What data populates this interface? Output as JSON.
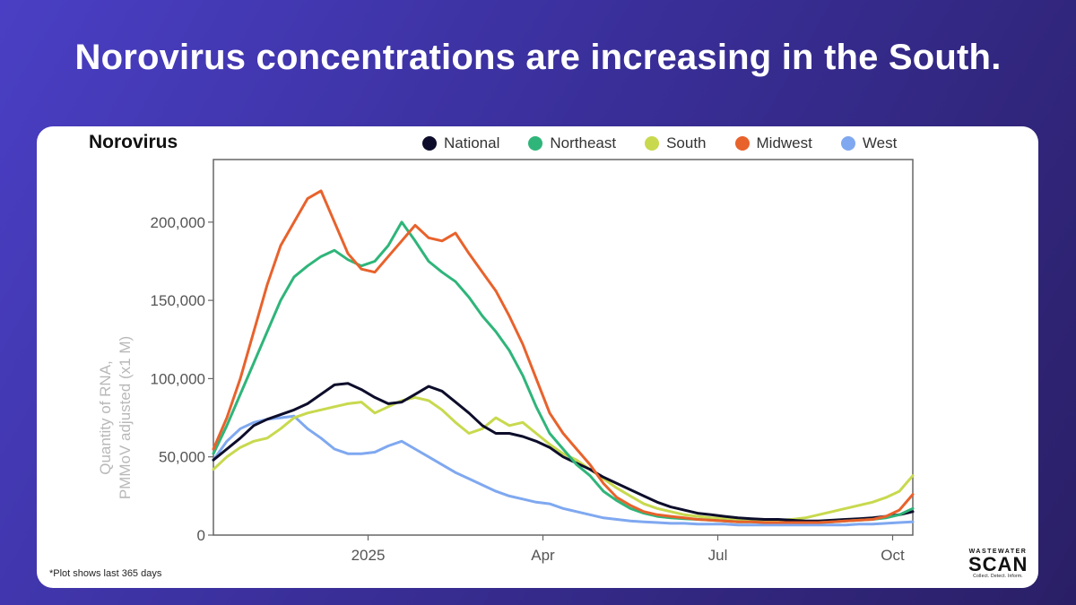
{
  "headline": "Norovirus concentrations are increasing in the South.",
  "footnote": "*Plot shows last 365 days",
  "logo": {
    "top": "WASTEWATER",
    "main": "SCAN",
    "tag": "Collect. Detect. Inform."
  },
  "chart_data": {
    "type": "line",
    "title": "Norovirus",
    "ylabel": "Quantity of RNA,\nPMMoV adjusted (x1 M)",
    "ylabel_lines": [
      "Quantity of RNA,",
      "PMMoV adjusted (x1 M)"
    ],
    "xlabel": "",
    "xlim": [
      0,
      52
    ],
    "ylim": [
      0,
      240000
    ],
    "x_unit": "week index (last 365 days)",
    "x_ticks": [
      {
        "x": 11.5,
        "label": "2025"
      },
      {
        "x": 24.5,
        "label": "Apr"
      },
      {
        "x": 37.5,
        "label": "Jul"
      },
      {
        "x": 50.5,
        "label": "Oct"
      }
    ],
    "y_ticks": [
      {
        "y": 0,
        "label": "0"
      },
      {
        "y": 50000,
        "label": "50,000"
      },
      {
        "y": 100000,
        "label": "100,000"
      },
      {
        "y": 150000,
        "label": "150,000"
      },
      {
        "y": 200000,
        "label": "200,000"
      }
    ],
    "legend_position": "top",
    "x": [
      0,
      1,
      2,
      3,
      4,
      5,
      6,
      7,
      8,
      9,
      10,
      11,
      12,
      13,
      14,
      15,
      16,
      17,
      18,
      19,
      20,
      21,
      22,
      23,
      24,
      25,
      26,
      27,
      28,
      29,
      30,
      31,
      32,
      33,
      34,
      35,
      36,
      37,
      38,
      39,
      40,
      41,
      42,
      43,
      44,
      45,
      46,
      47,
      48,
      49,
      50,
      51,
      52
    ],
    "series": [
      {
        "name": "National",
        "color": "#0d0d2b",
        "values": [
          48000,
          55000,
          62000,
          70000,
          74000,
          77000,
          80000,
          84000,
          90000,
          96000,
          97000,
          93000,
          88000,
          84000,
          85000,
          90000,
          95000,
          92000,
          85000,
          78000,
          70000,
          65000,
          65000,
          63000,
          60000,
          56000,
          50000,
          46000,
          42000,
          37000,
          33000,
          29000,
          25000,
          21000,
          18000,
          16000,
          14000,
          13000,
          12000,
          11000,
          10500,
          10000,
          10000,
          9500,
          9000,
          9000,
          9500,
          10000,
          10500,
          11000,
          12000,
          13000,
          15000
        ]
      },
      {
        "name": "Northeast",
        "color": "#2fb57a",
        "values": [
          52000,
          70000,
          90000,
          110000,
          130000,
          150000,
          165000,
          172000,
          178000,
          182000,
          176000,
          172000,
          175000,
          185000,
          200000,
          188000,
          175000,
          168000,
          162000,
          152000,
          140000,
          130000,
          118000,
          102000,
          82000,
          65000,
          55000,
          45000,
          38000,
          28000,
          22000,
          17000,
          14000,
          12000,
          11000,
          10500,
          10000,
          9500,
          9000,
          8500,
          8500,
          8000,
          8000,
          8000,
          8000,
          8000,
          8500,
          9000,
          9500,
          10000,
          11000,
          13000,
          17000
        ]
      },
      {
        "name": "South",
        "color": "#c8d94e",
        "values": [
          42000,
          50000,
          56000,
          60000,
          62000,
          68000,
          75000,
          78000,
          80000,
          82000,
          84000,
          85000,
          78000,
          82000,
          86000,
          88000,
          86000,
          80000,
          72000,
          65000,
          68000,
          75000,
          70000,
          72000,
          65000,
          58000,
          52000,
          48000,
          42000,
          36000,
          30000,
          25000,
          20000,
          17000,
          15000,
          13000,
          12000,
          11000,
          10500,
          10000,
          10000,
          9500,
          9500,
          10000,
          11000,
          13000,
          15000,
          17000,
          19000,
          21000,
          24000,
          28000,
          38000
        ]
      },
      {
        "name": "Midwest",
        "color": "#e8622c",
        "values": [
          55000,
          75000,
          100000,
          130000,
          160000,
          185000,
          200000,
          215000,
          220000,
          200000,
          180000,
          170000,
          168000,
          178000,
          188000,
          198000,
          190000,
          188000,
          193000,
          180000,
          168000,
          156000,
          140000,
          122000,
          100000,
          78000,
          65000,
          55000,
          45000,
          33000,
          24000,
          19000,
          15000,
          13000,
          12000,
          11000,
          10000,
          9500,
          9000,
          8500,
          8500,
          8000,
          8000,
          8000,
          8000,
          8000,
          8500,
          9000,
          9500,
          10000,
          12000,
          16000,
          26000
        ]
      },
      {
        "name": "West",
        "color": "#7fa8f0",
        "values": [
          48000,
          60000,
          68000,
          72000,
          74000,
          75000,
          76000,
          68000,
          62000,
          55000,
          52000,
          52000,
          53000,
          57000,
          60000,
          55000,
          50000,
          45000,
          40000,
          36000,
          32000,
          28000,
          25000,
          23000,
          21000,
          20000,
          17000,
          15000,
          13000,
          11000,
          10000,
          9000,
          8500,
          8000,
          7500,
          7500,
          7000,
          7000,
          7000,
          6500,
          6500,
          6500,
          6500,
          6500,
          6500,
          6500,
          6500,
          6500,
          7000,
          7000,
          7500,
          8000,
          8500
        ]
      }
    ]
  }
}
